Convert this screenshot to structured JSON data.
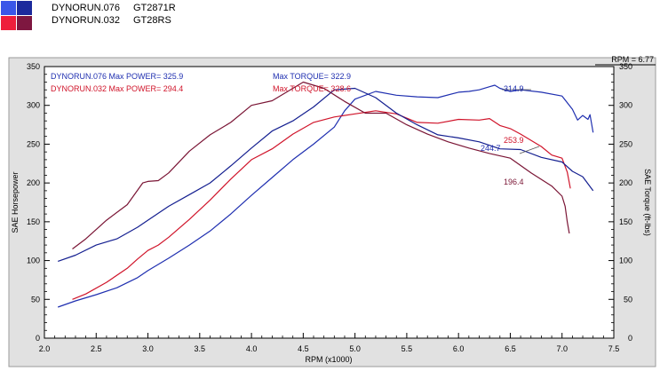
{
  "legend": {
    "entries": [
      {
        "run": "DYNORUN.076",
        "name": "GT2871R"
      },
      {
        "run": "DYNORUN.032",
        "name": "GT28RS"
      }
    ]
  },
  "colors": {
    "run076": "#1f2fb0",
    "run032": "#d0142a",
    "run076_torque": "#141f90",
    "run032_torque": "#7a1535",
    "background": "#e1e1e1"
  },
  "chart_data": {
    "type": "line",
    "xlabel": "RPM (x1000)",
    "ylabel_left": "SAE Horsepower",
    "ylabel_right": "SAE Torque (ft-lbs)",
    "xlim": [
      2.0,
      7.5
    ],
    "ylim": [
      0,
      350
    ],
    "x_ticks": [
      "2.0",
      "2.5",
      "3.0",
      "3.5",
      "4.0",
      "4.5",
      "5.0",
      "5.5",
      "6.0",
      "6.5",
      "7.0",
      "7.5"
    ],
    "y_ticks": [
      "0",
      "50",
      "100",
      "150",
      "200",
      "250",
      "300",
      "350"
    ],
    "rpm_readout": "RPM = 6.77",
    "grid": false,
    "annotations": {
      "run076_power": "DYNORUN.076  Max POWER= 325.9",
      "run032_power": "DYNORUN.032  Max POWER= 294.4",
      "run076_torque": "Max TORQUE= 322.9",
      "run032_torque": "Max TORQUE= 328.6",
      "marker_076_power": "314.9",
      "marker_032_power": "253.9",
      "marker_076_torque": "244.7",
      "marker_032_torque": "196.4"
    },
    "series": [
      {
        "name": "DYNORUN.076 Power",
        "color": "#1f2fb0",
        "x": [
          2.13,
          2.3,
          2.5,
          2.7,
          2.9,
          3.0,
          3.2,
          3.4,
          3.6,
          3.8,
          4.0,
          4.2,
          4.4,
          4.6,
          4.8,
          4.9,
          5.0,
          5.2,
          5.4,
          5.6,
          5.8,
          6.0,
          6.1,
          6.2,
          6.3,
          6.35,
          6.4,
          6.5,
          6.6,
          6.8,
          7.0,
          7.1,
          7.15,
          7.2,
          7.25,
          7.27,
          7.3
        ],
        "y": [
          40,
          48,
          56,
          65,
          78,
          87,
          103,
          120,
          138,
          160,
          184,
          207,
          230,
          250,
          272,
          293,
          308,
          318,
          313,
          311,
          310,
          317,
          318,
          320,
          324,
          326,
          322,
          318,
          320,
          317,
          312,
          295,
          281,
          287,
          282,
          288,
          265
        ]
      },
      {
        "name": "DYNORUN.032 Power",
        "color": "#d0142a",
        "x": [
          2.27,
          2.4,
          2.6,
          2.8,
          2.9,
          3.0,
          3.1,
          3.2,
          3.4,
          3.6,
          3.8,
          4.0,
          4.2,
          4.4,
          4.6,
          4.8,
          5.0,
          5.2,
          5.4,
          5.6,
          5.8,
          6.0,
          6.2,
          6.3,
          6.4,
          6.5,
          6.6,
          6.8,
          6.9,
          7.0,
          7.05,
          7.08
        ],
        "y": [
          50,
          57,
          72,
          90,
          102,
          113,
          120,
          130,
          153,
          178,
          205,
          230,
          244,
          263,
          278,
          285,
          289,
          293,
          289,
          278,
          277,
          282,
          281,
          283,
          274,
          270,
          263,
          247,
          236,
          232,
          214,
          193
        ]
      },
      {
        "name": "DYNORUN.076 Torque",
        "color": "#141f90",
        "x": [
          2.13,
          2.3,
          2.5,
          2.7,
          2.9,
          3.0,
          3.2,
          3.4,
          3.6,
          3.8,
          4.0,
          4.2,
          4.4,
          4.6,
          4.8,
          5.0,
          5.2,
          5.4,
          5.6,
          5.8,
          6.0,
          6.2,
          6.4,
          6.6,
          6.8,
          7.0,
          7.1,
          7.2,
          7.3
        ],
        "y": [
          99,
          107,
          120,
          128,
          143,
          152,
          170,
          185,
          200,
          222,
          245,
          267,
          280,
          298,
          320,
          322,
          310,
          290,
          275,
          262,
          258,
          253,
          244,
          243,
          233,
          227,
          215,
          208,
          190
        ]
      },
      {
        "name": "DYNORUN.032 Torque",
        "color": "#7a1535",
        "x": [
          2.27,
          2.4,
          2.6,
          2.8,
          2.95,
          3.0,
          3.1,
          3.2,
          3.4,
          3.6,
          3.8,
          4.0,
          4.2,
          4.5,
          4.7,
          4.9,
          5.1,
          5.3,
          5.5,
          5.7,
          5.9,
          6.1,
          6.3,
          6.5,
          6.7,
          6.9,
          7.0,
          7.03,
          7.05,
          7.07
        ],
        "y": [
          115,
          128,
          152,
          172,
          200,
          202,
          203,
          213,
          241,
          262,
          278,
          300,
          306,
          330,
          322,
          305,
          290,
          290,
          275,
          263,
          253,
          245,
          238,
          232,
          213,
          196,
          183,
          170,
          150,
          135
        ]
      }
    ]
  }
}
